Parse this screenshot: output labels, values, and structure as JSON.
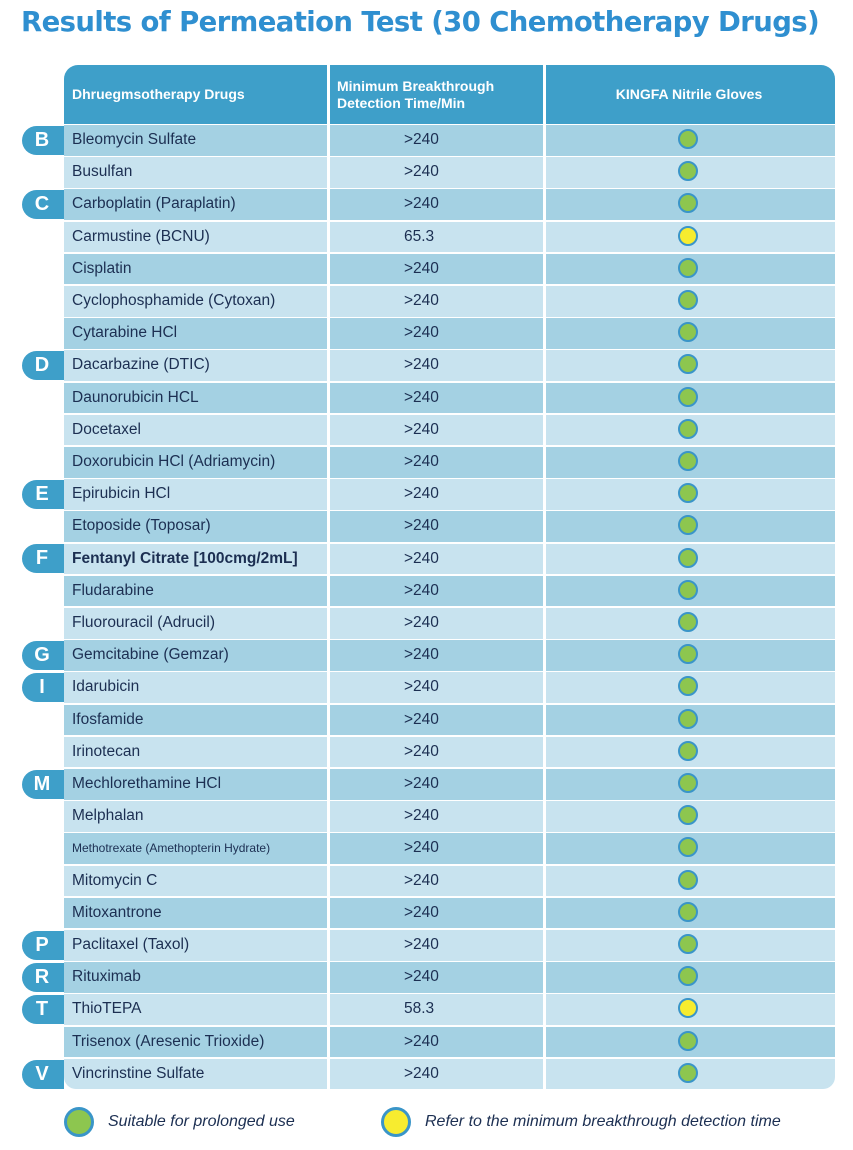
{
  "title": "Results of Permeation Test (30 Chemotherapy Drugs)",
  "colors": {
    "accent": "#3e9fc9",
    "title": "#2f8fd0",
    "suitable": "#8dc64f",
    "refer": "#f7ec2f"
  },
  "headers": {
    "drug": "Dhruegmsotherapy Drugs",
    "time_line1": "Minimum Breakthrough",
    "time_line2": "Detection Time/Min",
    "glove": "KINGFA Nitrile Gloves"
  },
  "letters": [
    {
      "letter": "B",
      "row": 0
    },
    {
      "letter": "C",
      "row": 2
    },
    {
      "letter": "D",
      "row": 7
    },
    {
      "letter": "E",
      "row": 11
    },
    {
      "letter": "F",
      "row": 13
    },
    {
      "letter": "G",
      "row": 16
    },
    {
      "letter": "I",
      "row": 17
    },
    {
      "letter": "M",
      "row": 20
    },
    {
      "letter": "P",
      "row": 25
    },
    {
      "letter": "R",
      "row": 26
    },
    {
      "letter": "T",
      "row": 27
    },
    {
      "letter": "V",
      "row": 29
    }
  ],
  "rows": [
    {
      "drug": "Bleomycin Sulfate",
      "time": ">240",
      "status": "suitable"
    },
    {
      "drug": "Busulfan",
      "time": ">240",
      "status": "suitable"
    },
    {
      "drug": "Carboplatin (Paraplatin)",
      "time": ">240",
      "status": "suitable"
    },
    {
      "drug": "Carmustine (BCNU)",
      "time": "65.3",
      "status": "refer"
    },
    {
      "drug": "Cisplatin",
      "time": ">240",
      "status": "suitable"
    },
    {
      "drug": "Cyclophosphamide (Cytoxan)",
      "time": ">240",
      "status": "suitable"
    },
    {
      "drug": "Cytarabine HCl",
      "time": ">240",
      "status": "suitable"
    },
    {
      "drug": "Dacarbazine (DTIC)",
      "time": ">240",
      "status": "suitable"
    },
    {
      "drug": "Daunorubicin HCL",
      "time": ">240",
      "status": "suitable"
    },
    {
      "drug": "Docetaxel",
      "time": ">240",
      "status": "suitable"
    },
    {
      "drug": "Doxorubicin HCl (Adriamycin)",
      "time": ">240",
      "status": "suitable"
    },
    {
      "drug": "Epirubicin HCl",
      "time": ">240",
      "status": "suitable"
    },
    {
      "drug": "Etoposide (Toposar)",
      "time": ">240",
      "status": "suitable"
    },
    {
      "drug": "Fentanyl Citrate [100cmg/2mL]",
      "time": ">240",
      "status": "suitable",
      "style": "bold"
    },
    {
      "drug": "Fludarabine",
      "time": ">240",
      "status": "suitable"
    },
    {
      "drug": "Fluorouracil (Adrucil)",
      "time": ">240",
      "status": "suitable"
    },
    {
      "drug": "Gemcitabine (Gemzar)",
      "time": ">240",
      "status": "suitable"
    },
    {
      "drug": "Idarubicin",
      "time": ">240",
      "status": "suitable"
    },
    {
      "drug": "Ifosfamide",
      "time": ">240",
      "status": "suitable"
    },
    {
      "drug": "Irinotecan",
      "time": ">240",
      "status": "suitable"
    },
    {
      "drug": "Mechlorethamine HCl",
      "time": ">240",
      "status": "suitable"
    },
    {
      "drug": "Melphalan",
      "time": ">240",
      "status": "suitable"
    },
    {
      "drug": "Methotrexate (Amethopterin Hydrate)",
      "time": ">240",
      "status": "suitable",
      "style": "small"
    },
    {
      "drug": "Mitomycin C",
      "time": ">240",
      "status": "suitable"
    },
    {
      "drug": "Mitoxantrone",
      "time": ">240",
      "status": "suitable"
    },
    {
      "drug": "Paclitaxel (Taxol)",
      "time": ">240",
      "status": "suitable"
    },
    {
      "drug": "Rituximab",
      "time": ">240",
      "status": "suitable"
    },
    {
      "drug": "ThioTEPA",
      "time": "58.3",
      "status": "refer"
    },
    {
      "drug": "Trisenox (Aresenic Trioxide)",
      "time": ">240",
      "status": "suitable"
    },
    {
      "drug": "Vincrinstine Sulfate",
      "time": ">240",
      "status": "suitable"
    }
  ],
  "legend": {
    "suitable": "Suitable for prolonged use",
    "refer": "Refer to the minimum breakthrough detection time"
  }
}
